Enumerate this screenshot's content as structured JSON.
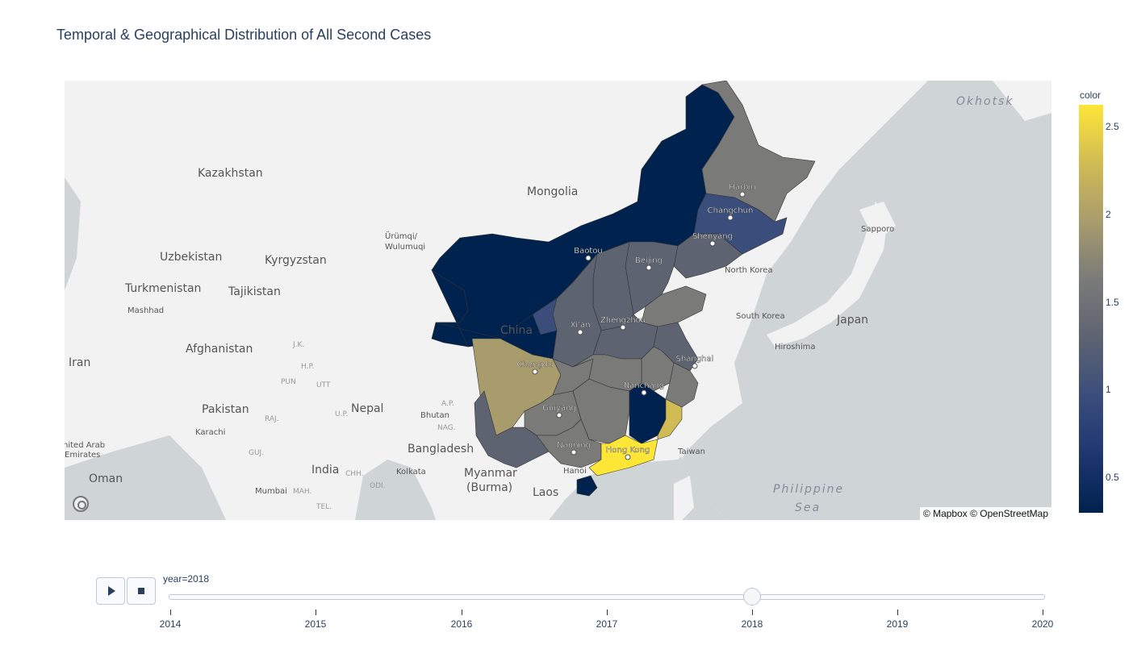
{
  "title": "Temporal & Geographical Distribution of All Second Cases",
  "map": {
    "attribution": "© Mapbox © OpenStreetMap",
    "labels": [
      {
        "name": "country-okhotsk",
        "text": "Okhotsk",
        "kind": "sea"
      },
      {
        "name": "country-kazakhstan",
        "text": "Kazakhstan",
        "kind": "country"
      },
      {
        "name": "country-mongolia",
        "text": "Mongolia",
        "kind": "country"
      },
      {
        "name": "city-urumqi",
        "text": "Ürümqi/",
        "kind": "city"
      },
      {
        "name": "city-wulumuqi",
        "text": "Wulumuqi",
        "kind": "city"
      },
      {
        "name": "country-uzbekistan",
        "text": "Uzbekistan",
        "kind": "country"
      },
      {
        "name": "country-kyrgyzstan",
        "text": "Kyrgyzstan",
        "kind": "country"
      },
      {
        "name": "country-turkmenistan",
        "text": "Turkmenistan",
        "kind": "country"
      },
      {
        "name": "country-tajikistan",
        "text": "Tajikistan",
        "kind": "country"
      },
      {
        "name": "city-mashhad",
        "text": "Mashhad",
        "kind": "city"
      },
      {
        "name": "country-afghanistan",
        "text": "Afghanistan",
        "kind": "country"
      },
      {
        "name": "country-iran",
        "text": "Iran",
        "kind": "country"
      },
      {
        "name": "region-jk",
        "text": "J.K.",
        "kind": "region"
      },
      {
        "name": "region-hp",
        "text": "H.P.",
        "kind": "region"
      },
      {
        "name": "region-pun",
        "text": "PUN",
        "kind": "region"
      },
      {
        "name": "region-utt",
        "text": "UTT",
        "kind": "region"
      },
      {
        "name": "country-pakistan",
        "text": "Pakistan",
        "kind": "country"
      },
      {
        "name": "country-nepal",
        "text": "Nepal",
        "kind": "country"
      },
      {
        "name": "region-ap",
        "text": "A.P.",
        "kind": "region"
      },
      {
        "name": "region-raj",
        "text": "RAJ.",
        "kind": "region"
      },
      {
        "name": "region-up",
        "text": "U.P.",
        "kind": "region"
      },
      {
        "name": "country-bhutan",
        "text": "Bhutan",
        "kind": "city"
      },
      {
        "name": "region-nag",
        "text": "NAG.",
        "kind": "region"
      },
      {
        "name": "city-karachi",
        "text": "Karachi",
        "kind": "city"
      },
      {
        "name": "region-guj",
        "text": "GUJ.",
        "kind": "region"
      },
      {
        "name": "country-uae-1",
        "text": "nited Arab",
        "kind": "city"
      },
      {
        "name": "country-uae-2",
        "text": "Emirates",
        "kind": "city"
      },
      {
        "name": "country-bangladesh",
        "text": "Bangladesh",
        "kind": "country"
      },
      {
        "name": "country-india",
        "text": "India",
        "kind": "country"
      },
      {
        "name": "region-chh",
        "text": "CHH.",
        "kind": "region"
      },
      {
        "name": "region-odi",
        "text": "ODI.",
        "kind": "region"
      },
      {
        "name": "city-kolkata",
        "text": "Kolkata",
        "kind": "city"
      },
      {
        "name": "country-oman",
        "text": "Oman",
        "kind": "country"
      },
      {
        "name": "city-mumbai",
        "text": "Mumbai",
        "kind": "city"
      },
      {
        "name": "region-mah",
        "text": "MAH.",
        "kind": "region"
      },
      {
        "name": "region-tel",
        "text": "TEL.",
        "kind": "region"
      },
      {
        "name": "country-myanmar-1",
        "text": "Myanmar",
        "kind": "country"
      },
      {
        "name": "country-myanmar-2",
        "text": "(Burma)",
        "kind": "country"
      },
      {
        "name": "country-laos",
        "text": "Laos",
        "kind": "country"
      },
      {
        "name": "city-hanoi",
        "text": "Hanoi",
        "kind": "city"
      },
      {
        "name": "country-china",
        "text": "China",
        "kind": "country"
      },
      {
        "name": "country-north-korea",
        "text": "North Korea",
        "kind": "city"
      },
      {
        "name": "country-south-korea",
        "text": "South Korea",
        "kind": "city"
      },
      {
        "name": "country-japan",
        "text": "Japan",
        "kind": "country"
      },
      {
        "name": "city-sapporo",
        "text": "Sapporo",
        "kind": "city"
      },
      {
        "name": "city-hiroshima",
        "text": "Hiroshima",
        "kind": "city"
      },
      {
        "name": "city-taiwan",
        "text": "Taiwan",
        "kind": "city"
      },
      {
        "name": "sea-philippine-1",
        "text": "Philippine",
        "kind": "sea"
      },
      {
        "name": "sea-philippine-2",
        "text": "Sea",
        "kind": "sea"
      }
    ],
    "cities": [
      {
        "name": "harbin",
        "text": "Harbin"
      },
      {
        "name": "changchun",
        "text": "Changchun"
      },
      {
        "name": "shenyang",
        "text": "Shenyang"
      },
      {
        "name": "baotou",
        "text": "Baotou"
      },
      {
        "name": "beijing",
        "text": "Beijing"
      },
      {
        "name": "xian",
        "text": "Xi'an"
      },
      {
        "name": "zhengzhou",
        "text": "Zhengzhou"
      },
      {
        "name": "chengdu",
        "text": "Chengdu"
      },
      {
        "name": "shanghai",
        "text": "Shanghai"
      },
      {
        "name": "nanchang",
        "text": "Nanchang"
      },
      {
        "name": "guiyang",
        "text": "Guiyang"
      },
      {
        "name": "nanning",
        "text": "Nanning"
      },
      {
        "name": "hong-kong",
        "text": "Hong Kong"
      }
    ]
  },
  "colorbar": {
    "title": "color",
    "ticks": [
      "2.5",
      "2",
      "1.5",
      "1",
      "0.5"
    ],
    "colors": [
      "#fde636",
      "#d1bb55",
      "#a89c6c",
      "#7a7a79",
      "#5e6371",
      "#3a4d7b",
      "#1f3671",
      "#00224e"
    ]
  },
  "region_values": {
    "heilongjiang": 1.6,
    "jilin": 0.9,
    "liaoning": 1.4,
    "inner-mongolia": 0.4,
    "beijing": 2.6,
    "tianjin": 2.2,
    "hebei": 1.3,
    "shanxi": 1.2,
    "shandong": 1.8,
    "shaanxi": 1.2,
    "ningxia": 1.1,
    "henan": 1.2,
    "jiangsu": 1.3,
    "anhui": 1.5,
    "sichuan": 1.9,
    "chongqing": 1.5,
    "hubei": 1.6,
    "hunan": 1.7,
    "jiangxi": 0.4,
    "zhejiang": 1.6,
    "fujian": 2.2,
    "guizhou": 1.8,
    "yunnan": 1.4,
    "guangxi": 1.7,
    "guangdong": 2.65,
    "hainan": 0.3
  },
  "slider": {
    "current_label": "year=2018",
    "years": [
      "2014",
      "2015",
      "2016",
      "2017",
      "2018",
      "2019",
      "2020"
    ],
    "selected": "2018"
  }
}
